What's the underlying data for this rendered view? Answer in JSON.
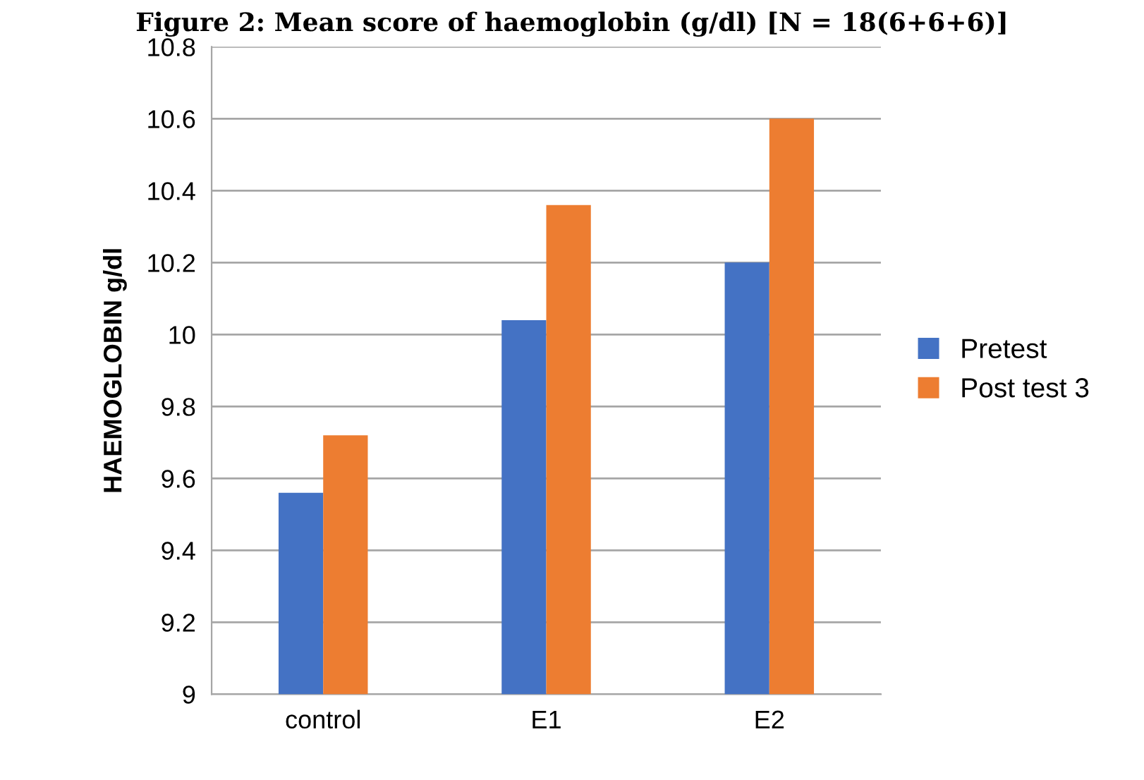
{
  "chart_data": {
    "type": "bar",
    "title": "Figure 2: Mean score of haemoglobin (g/dl) [N = 18(6+6+6)]",
    "ylabel": "HAEMOGLOBIN g/dl",
    "categories": [
      "control",
      "E1",
      "E2"
    ],
    "series": [
      {
        "name": "Pretest",
        "color": "#4472c4",
        "values": [
          9.56,
          10.04,
          10.2
        ]
      },
      {
        "name": "Post test 3",
        "color": "#ed7d31",
        "values": [
          9.72,
          10.36,
          10.6
        ]
      }
    ],
    "ylim": [
      9,
      10.8
    ],
    "yticks": [
      9,
      9.2,
      9.4,
      9.6,
      9.8,
      10,
      10.2,
      10.4,
      10.6,
      10.8
    ],
    "grid": "y",
    "legend": "right"
  }
}
